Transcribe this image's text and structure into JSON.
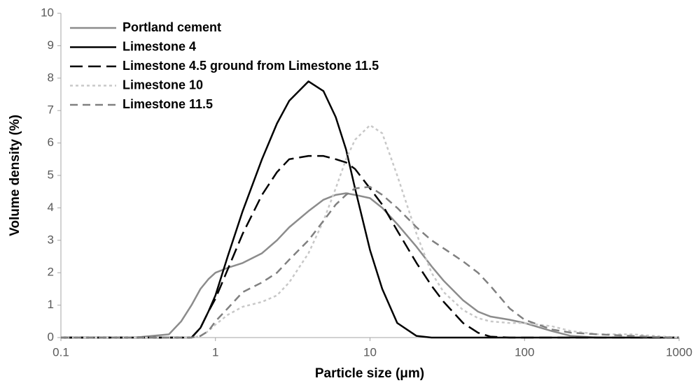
{
  "chart_data": {
    "type": "line",
    "x_label": "Particle size (μm)",
    "y_label": "Volume density (%)",
    "x": [
      0.1,
      0.3,
      0.5,
      0.6,
      0.7,
      0.8,
      0.9,
      1,
      1.2,
      1.5,
      2,
      2.5,
      3,
      4,
      5,
      6,
      7,
      8,
      10,
      12,
      15,
      20,
      25,
      30,
      40,
      50,
      60,
      80,
      100,
      150,
      200,
      300,
      500,
      700,
      1000
    ],
    "series": [
      {
        "name": "Portland cement",
        "color": "#8c8c8c",
        "dash": "solid",
        "values": [
          0,
          0,
          0.1,
          0.5,
          1.0,
          1.5,
          1.8,
          2.0,
          2.15,
          2.3,
          2.6,
          3.0,
          3.4,
          3.9,
          4.25,
          4.4,
          4.45,
          4.4,
          4.3,
          4.0,
          3.5,
          2.8,
          2.2,
          1.75,
          1.15,
          0.8,
          0.65,
          0.55,
          0.45,
          0.2,
          0.05,
          0,
          0,
          0,
          0
        ]
      },
      {
        "name": "Limestone 4",
        "color": "#000000",
        "dash": "solid",
        "values": [
          0,
          0,
          0,
          0,
          0,
          0.3,
          0.8,
          1.3,
          2.5,
          3.9,
          5.5,
          6.6,
          7.3,
          7.9,
          7.6,
          6.8,
          5.8,
          4.6,
          2.7,
          1.5,
          0.45,
          0.05,
          0,
          0,
          0,
          0,
          0,
          0,
          0,
          0,
          0,
          0,
          0,
          0,
          0
        ]
      },
      {
        "name": "Limestone 4.5 ground from Limestone 11.5",
        "color": "#000000",
        "dash": "long-dash",
        "values": [
          0,
          0,
          0,
          0,
          0,
          0.3,
          0.8,
          1.2,
          2.1,
          3.2,
          4.4,
          5.1,
          5.5,
          5.6,
          5.6,
          5.5,
          5.4,
          5.2,
          4.6,
          4.1,
          3.3,
          2.3,
          1.6,
          1.1,
          0.45,
          0.15,
          0.03,
          0,
          0,
          0,
          0,
          0,
          0,
          0,
          0
        ]
      },
      {
        "name": "Limestone 10",
        "color": "#c8c8c8",
        "dash": "dot",
        "values": [
          0,
          0,
          0,
          0,
          0,
          0.05,
          0.2,
          0.4,
          0.7,
          0.95,
          1.1,
          1.3,
          1.7,
          2.6,
          3.6,
          4.6,
          5.5,
          6.1,
          6.55,
          6.3,
          5.0,
          3.2,
          2.0,
          1.4,
          0.85,
          0.6,
          0.5,
          0.45,
          0.45,
          0.35,
          0.2,
          0.1,
          0.1,
          0.05,
          0
        ]
      },
      {
        "name": "Limestone 11.5",
        "color": "#808080",
        "dash": "dash",
        "values": [
          0,
          0,
          0,
          0,
          0,
          0.05,
          0.2,
          0.5,
          0.9,
          1.4,
          1.7,
          2.0,
          2.4,
          3.0,
          3.6,
          4.1,
          4.4,
          4.6,
          4.65,
          4.4,
          4.0,
          3.4,
          3.0,
          2.75,
          2.35,
          2.0,
          1.6,
          0.9,
          0.55,
          0.25,
          0.15,
          0.1,
          0.05,
          0.02,
          0
        ]
      }
    ],
    "xlim": [
      0.1,
      1000
    ],
    "xticks": [
      0.1,
      1,
      10,
      100,
      1000
    ],
    "x_scale": "log",
    "ylim": [
      0,
      10
    ],
    "yticks": [
      0,
      1,
      2,
      3,
      4,
      5,
      6,
      7,
      8,
      9,
      10
    ],
    "grid": false,
    "legend": "top-left"
  }
}
